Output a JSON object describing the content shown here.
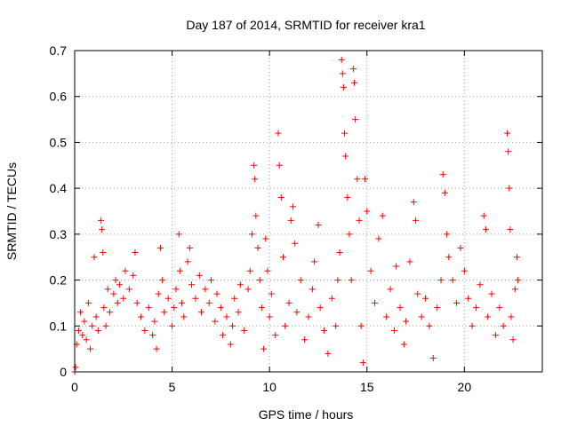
{
  "chart_data": {
    "type": "scatter",
    "title": "Day 187 of 2014, SRMTID for receiver kra1",
    "xlabel": "GPS time / hours",
    "ylabel": "SRMTID / TECUs",
    "xlim": [
      0,
      24
    ],
    "ylim": [
      0,
      0.7
    ],
    "xticks": [
      0,
      5,
      10,
      15,
      20
    ],
    "yticks": [
      0,
      0.1,
      0.2,
      0.3,
      0.4,
      0.5,
      0.6,
      0.7
    ],
    "xtick_labels": [
      "0",
      "5",
      "10",
      "15",
      "20"
    ],
    "ytick_labels": [
      "0",
      "0.1",
      "0.2",
      "0.3",
      "0.4",
      "0.5",
      "0.6",
      "0.7"
    ],
    "grid": true,
    "marker": "+",
    "series_color": "#ff0000",
    "series": [
      {
        "name": "SRMTID",
        "points": [
          [
            0.0,
            0.0
          ],
          [
            0.05,
            0.01
          ],
          [
            0.1,
            0.06
          ],
          [
            0.2,
            0.09
          ],
          [
            0.3,
            0.13
          ],
          [
            0.4,
            0.08
          ],
          [
            0.5,
            0.11
          ],
          [
            0.6,
            0.07
          ],
          [
            0.7,
            0.15
          ],
          [
            0.8,
            0.05
          ],
          [
            0.9,
            0.1
          ],
          [
            1.0,
            0.25
          ],
          [
            1.1,
            0.12
          ],
          [
            1.2,
            0.09
          ],
          [
            1.35,
            0.33
          ],
          [
            1.4,
            0.31
          ],
          [
            1.45,
            0.26
          ],
          [
            1.5,
            0.14
          ],
          [
            1.6,
            0.1
          ],
          [
            1.7,
            0.18
          ],
          [
            1.8,
            0.13
          ],
          [
            2.0,
            0.17
          ],
          [
            2.1,
            0.2
          ],
          [
            2.2,
            0.15
          ],
          [
            2.3,
            0.19
          ],
          [
            2.5,
            0.16
          ],
          [
            2.6,
            0.22
          ],
          [
            2.8,
            0.18
          ],
          [
            3.0,
            0.21
          ],
          [
            3.1,
            0.26
          ],
          [
            3.2,
            0.15
          ],
          [
            3.4,
            0.12
          ],
          [
            3.6,
            0.09
          ],
          [
            3.8,
            0.14
          ],
          [
            4.0,
            0.08
          ],
          [
            4.1,
            0.11
          ],
          [
            4.2,
            0.05
          ],
          [
            4.3,
            0.17
          ],
          [
            4.4,
            0.27
          ],
          [
            4.5,
            0.2
          ],
          [
            4.6,
            0.13
          ],
          [
            4.8,
            0.16
          ],
          [
            5.0,
            0.1
          ],
          [
            5.1,
            0.14
          ],
          [
            5.2,
            0.18
          ],
          [
            5.35,
            0.3
          ],
          [
            5.4,
            0.22
          ],
          [
            5.5,
            0.15
          ],
          [
            5.6,
            0.12
          ],
          [
            5.8,
            0.24
          ],
          [
            5.9,
            0.27
          ],
          [
            6.0,
            0.19
          ],
          [
            6.2,
            0.16
          ],
          [
            6.4,
            0.21
          ],
          [
            6.5,
            0.13
          ],
          [
            6.7,
            0.18
          ],
          [
            6.9,
            0.15
          ],
          [
            7.0,
            0.2
          ],
          [
            7.2,
            0.11
          ],
          [
            7.3,
            0.17
          ],
          [
            7.5,
            0.14
          ],
          [
            7.6,
            0.08
          ],
          [
            7.8,
            0.12
          ],
          [
            8.0,
            0.06
          ],
          [
            8.1,
            0.1
          ],
          [
            8.2,
            0.16
          ],
          [
            8.4,
            0.13
          ],
          [
            8.5,
            0.19
          ],
          [
            8.7,
            0.09
          ],
          [
            8.9,
            0.18
          ],
          [
            9.0,
            0.22
          ],
          [
            9.1,
            0.3
          ],
          [
            9.2,
            0.45
          ],
          [
            9.25,
            0.42
          ],
          [
            9.3,
            0.34
          ],
          [
            9.4,
            0.27
          ],
          [
            9.5,
            0.2
          ],
          [
            9.6,
            0.14
          ],
          [
            9.7,
            0.05
          ],
          [
            9.8,
            0.29
          ],
          [
            9.9,
            0.22
          ],
          [
            10.0,
            0.12
          ],
          [
            10.1,
            0.17
          ],
          [
            10.3,
            0.08
          ],
          [
            10.45,
            0.52
          ],
          [
            10.5,
            0.45
          ],
          [
            10.6,
            0.38
          ],
          [
            10.7,
            0.25
          ],
          [
            10.8,
            0.1
          ],
          [
            11.0,
            0.15
          ],
          [
            11.1,
            0.33
          ],
          [
            11.2,
            0.36
          ],
          [
            11.3,
            0.28
          ],
          [
            11.4,
            0.13
          ],
          [
            11.6,
            0.2
          ],
          [
            11.8,
            0.07
          ],
          [
            12.0,
            0.12
          ],
          [
            12.2,
            0.18
          ],
          [
            12.3,
            0.24
          ],
          [
            12.5,
            0.32
          ],
          [
            12.6,
            0.14
          ],
          [
            12.8,
            0.09
          ],
          [
            13.0,
            0.04
          ],
          [
            13.2,
            0.16
          ],
          [
            13.4,
            0.1
          ],
          [
            13.5,
            0.2
          ],
          [
            13.6,
            0.26
          ],
          [
            13.7,
            0.68
          ],
          [
            13.75,
            0.65
          ],
          [
            13.8,
            0.62
          ],
          [
            13.85,
            0.52
          ],
          [
            13.9,
            0.47
          ],
          [
            14.0,
            0.38
          ],
          [
            14.1,
            0.3
          ],
          [
            14.2,
            0.2
          ],
          [
            14.3,
            0.66
          ],
          [
            14.35,
            0.63
          ],
          [
            14.4,
            0.55
          ],
          [
            14.5,
            0.42
          ],
          [
            14.6,
            0.33
          ],
          [
            14.7,
            0.1
          ],
          [
            14.8,
            0.02
          ],
          [
            14.9,
            0.42
          ],
          [
            15.0,
            0.35
          ],
          [
            15.2,
            0.22
          ],
          [
            15.4,
            0.15
          ],
          [
            15.6,
            0.29
          ],
          [
            15.8,
            0.34
          ],
          [
            16.0,
            0.12
          ],
          [
            16.2,
            0.18
          ],
          [
            16.4,
            0.09
          ],
          [
            16.5,
            0.23
          ],
          [
            16.7,
            0.14
          ],
          [
            16.9,
            0.06
          ],
          [
            17.0,
            0.11
          ],
          [
            17.2,
            0.24
          ],
          [
            17.4,
            0.37
          ],
          [
            17.5,
            0.33
          ],
          [
            17.6,
            0.17
          ],
          [
            17.8,
            0.12
          ],
          [
            18.0,
            0.16
          ],
          [
            18.2,
            0.1
          ],
          [
            18.4,
            0.03
          ],
          [
            18.6,
            0.14
          ],
          [
            18.8,
            0.2
          ],
          [
            18.9,
            0.43
          ],
          [
            19.0,
            0.39
          ],
          [
            19.1,
            0.3
          ],
          [
            19.2,
            0.25
          ],
          [
            19.4,
            0.2
          ],
          [
            19.6,
            0.15
          ],
          [
            19.8,
            0.27
          ],
          [
            20.0,
            0.22
          ],
          [
            20.2,
            0.16
          ],
          [
            20.4,
            0.1
          ],
          [
            20.6,
            0.14
          ],
          [
            20.8,
            0.19
          ],
          [
            21.0,
            0.34
          ],
          [
            21.1,
            0.31
          ],
          [
            21.2,
            0.12
          ],
          [
            21.4,
            0.17
          ],
          [
            21.6,
            0.08
          ],
          [
            21.8,
            0.14
          ],
          [
            22.0,
            0.1
          ],
          [
            22.2,
            0.52
          ],
          [
            22.25,
            0.48
          ],
          [
            22.3,
            0.4
          ],
          [
            22.35,
            0.31
          ],
          [
            22.4,
            0.12
          ],
          [
            22.5,
            0.07
          ],
          [
            22.6,
            0.18
          ],
          [
            22.7,
            0.25
          ],
          [
            22.75,
            0.2
          ]
        ]
      }
    ]
  }
}
